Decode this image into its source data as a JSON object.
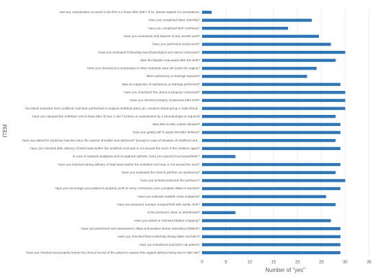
{
  "chart_data": {
    "type": "barh",
    "categories": [
      "Has any complication occurred in the first 2-4 hours after birth? If so, please explain it in annotations.",
      "Have you completed labor checklist?",
      "Have you completed birth certificate?",
      "Have you enumerate and dispose of any needle used?",
      "Have you performed rectal touch?",
      "Have you evaluated if bleeding was physiological and uterus contracted?",
      "Was the bladder evacuated after the birth?",
      "Have you checked no compresses or other materials were left inside the vagina?",
      "Were episiotomy or tearings repaired?",
      "Was an inspection of episiotomy or tearings performed?",
      "Have you checked if the uterus is properly contracted?",
      "Have you checked integrity of placenta after birth?",
      "You blood extraction from umbilical cord been performed to analyze umbilical artery pH, newborn blood group e make blood...",
      "Have you clamped the umbilical cord at least after 30 sec-1 min? (Unless an assessment by a Neonatologist is required)",
      "Was skin-to-skin contact allowed?",
      "Have you gently pull to assist shoulder delivery?",
      "Have you asked for oxytocine injection once the anterior shoulder was delivered? (except in case of donation of umbilical cord...",
      "Have you checked after delivery of fetal head wether the umbilical cord was or not around the neck of the newborn again?",
      "In case of epidural analgesia and no epidural catheter, have you injected local anaesthetic?",
      "Have you checked during delivery of fetal head wether the umbilical cord was or not around the neck?",
      "Have you evaluated the need to perform an episiotomy?",
      "Have you actively protected the perineum?",
      "Have you encourage your patient to properly push in every contraction once complete dilate is reached?",
      "Have you evaluate suitable vulva analgesia?",
      "Have you prepared a proper surgical field with sterile cloth?",
      "Is the perineum clean or desinfected?",
      "Have you asked or checked bladder emptying?",
      "Have you performed new assessment: dilate and position before attending childbirth?",
      "Have you checked fetal monitoring during dilate and labor?",
      "Have you introduced yourself to de patient?",
      "Have you checked and properly known the clinical record of the patient to assess this vaginal delivery being low or high risk?"
    ],
    "values": [
      2,
      23,
      18,
      24.5,
      27,
      30,
      28,
      24,
      22,
      29,
      30,
      30,
      30,
      28,
      29,
      29,
      28,
      29,
      7,
      29,
      28,
      30,
      29,
      26,
      28,
      7,
      27,
      29,
      29,
      29,
      29
    ],
    "color": "#2e75b6",
    "xlim": [
      0,
      35
    ],
    "xticks": [
      0,
      5,
      10,
      15,
      20,
      25,
      30,
      35
    ],
    "xlabel": "Number of \"yes\"",
    "ylabel": "ITEM",
    "grid": true
  }
}
